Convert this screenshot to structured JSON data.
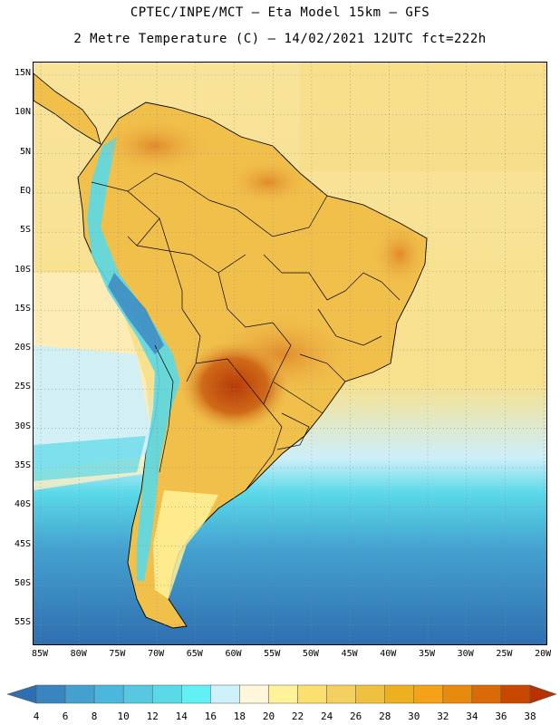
{
  "title_line1": "CPTEC/INPE/MCT –  Eta Model 15km – GFS",
  "title_line2": "2 Metre Temperature (C) – 14/02/2021 12UTC fct=222h",
  "lat_labels": [
    "15N",
    "10N",
    "5N",
    "EQ",
    "5S",
    "10S",
    "15S",
    "20S",
    "25S",
    "30S",
    "35S",
    "40S",
    "45S",
    "50S",
    "55S"
  ],
  "lon_labels": [
    "85W",
    "80W",
    "75W",
    "70W",
    "65W",
    "60W",
    "55W",
    "50W",
    "45W",
    "40W",
    "35W",
    "30W",
    "25W",
    "20W"
  ],
  "colorbar": {
    "labels": [
      "4",
      "6",
      "8",
      "10",
      "12",
      "14",
      "16",
      "18",
      "20",
      "22",
      "24",
      "26",
      "28",
      "30",
      "32",
      "34",
      "36",
      "38"
    ],
    "colors": [
      "#2f6fb0",
      "#3a84c0",
      "#43a0cf",
      "#4cb6dc",
      "#58c8e2",
      "#5ad9e8",
      "#62f0f5",
      "#cdf2fb",
      "#fff7dc",
      "#fff29a",
      "#fbdf70",
      "#f5d060",
      "#f0c040",
      "#edb020",
      "#f4a21a",
      "#e68a10",
      "#d86a08",
      "#c84800",
      "#b83200"
    ]
  }
}
